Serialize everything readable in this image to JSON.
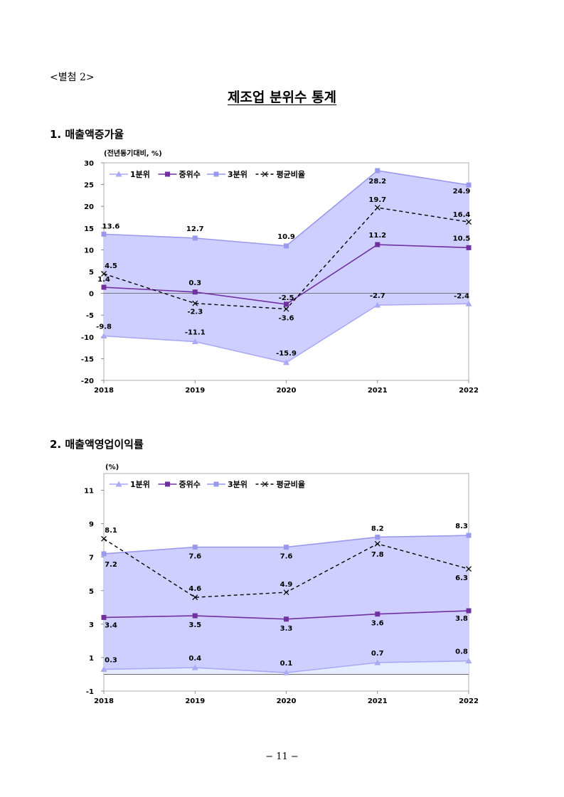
{
  "attachment": "<별첨 2>",
  "title": "제조업 분위수 통계",
  "page_number": "− 11 −",
  "sections": [
    {
      "heading": "1. 매출액증가율"
    },
    {
      "heading": "2. 매출액영업이익률"
    }
  ],
  "colors": {
    "q1": "#A9A9F5",
    "median": "#7030A0",
    "q3": "#9999EE",
    "avg": "#000000",
    "band": "#CCCCFF",
    "lower_band": "#E6ECFF"
  },
  "chart_data": [
    {
      "type": "line",
      "title": "",
      "unit_label": "(전년동기대비, %)",
      "categories": [
        "2018",
        "2019",
        "2020",
        "2021",
        "2022"
      ],
      "ylim": [
        -20,
        30
      ],
      "yticks": [
        "-20",
        "-15",
        "-10",
        "-5",
        "0",
        "5",
        "10",
        "15",
        "20",
        "25",
        "30"
      ],
      "shaded_band": [
        "1분위",
        "3분위"
      ],
      "legend": {
        "position": "top-left",
        "entries": [
          "1분위",
          "중위수",
          "3분위",
          "평균비율"
        ]
      },
      "series": [
        {
          "name": "1분위",
          "values": [
            -9.8,
            -11.1,
            -15.9,
            -2.7,
            -2.4
          ],
          "labels": [
            "-9.8",
            "-11.1",
            "-15.9",
            "-2.7",
            "-2.4"
          ]
        },
        {
          "name": "중위수",
          "values": [
            1.4,
            0.3,
            -2.5,
            11.2,
            10.5
          ],
          "labels": [
            "1.4",
            "0.3",
            "-2.5",
            "11.2",
            "10.5"
          ]
        },
        {
          "name": "3분위",
          "values": [
            13.6,
            12.7,
            10.9,
            28.2,
            24.9
          ],
          "labels": [
            "13.6",
            "12.7",
            "10.9",
            "28.2",
            "24.9"
          ]
        },
        {
          "name": "평균비율",
          "values": [
            4.5,
            -2.3,
            -3.6,
            19.7,
            16.4
          ],
          "labels": [
            "4.5",
            "-2.3",
            "-3.6",
            "19.7",
            "16.4"
          ]
        }
      ]
    },
    {
      "type": "line",
      "title": "",
      "unit_label": "(%)",
      "categories": [
        "2018",
        "2019",
        "2020",
        "2021",
        "2022"
      ],
      "ylim": [
        -1,
        12
      ],
      "yticks": [
        "-1",
        "1",
        "3",
        "5",
        "7",
        "9",
        "11"
      ],
      "shaded_band": [
        "1분위",
        "3분위"
      ],
      "legend": {
        "position": "top-left",
        "entries": [
          "1분위",
          "중위수",
          "3분위",
          "평균비율"
        ]
      },
      "series": [
        {
          "name": "1분위",
          "values": [
            0.3,
            0.4,
            0.1,
            0.7,
            0.8
          ],
          "labels": [
            "0.3",
            "0.4",
            "0.1",
            "0.7",
            "0.8"
          ]
        },
        {
          "name": "중위수",
          "values": [
            3.4,
            3.5,
            3.3,
            3.6,
            3.8
          ],
          "labels": [
            "3.4",
            "3.5",
            "3.3",
            "3.6",
            "3.8"
          ]
        },
        {
          "name": "3분위",
          "values": [
            7.2,
            7.6,
            7.6,
            8.2,
            8.3
          ],
          "labels": [
            "7.2",
            "7.6",
            "7.6",
            "8.2",
            "8.3"
          ]
        },
        {
          "name": "평균비율",
          "values": [
            8.1,
            4.6,
            4.9,
            7.8,
            6.3
          ],
          "labels": [
            "8.1",
            "4.6",
            "4.9",
            "7.8",
            "6.3"
          ]
        }
      ]
    }
  ]
}
